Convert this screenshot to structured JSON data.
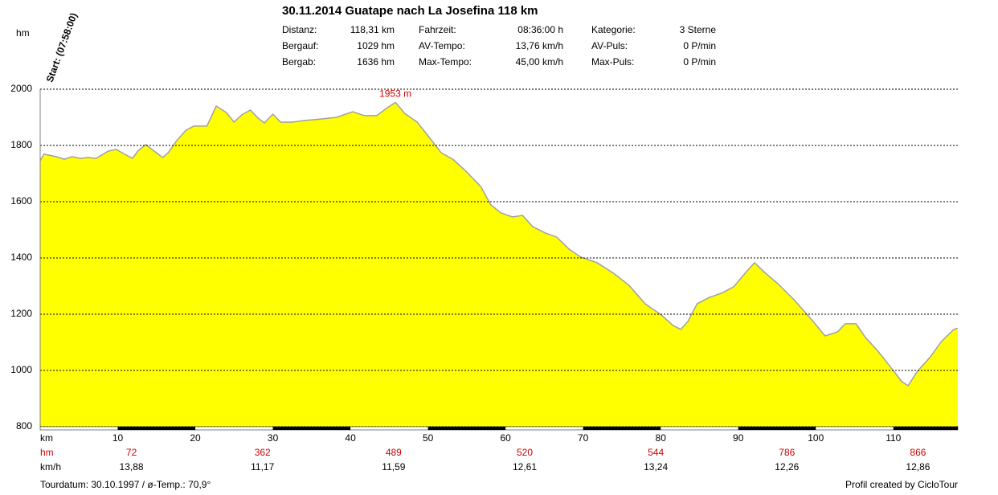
{
  "header": {
    "title": "30.11.2014 Guatape nach La Josefina 118 km",
    "stats": [
      [
        "Distanz:",
        "118,31 km",
        "Fahrzeit:",
        "08:36:00 h",
        "Kategorie:",
        "3 Sterne"
      ],
      [
        "Bergauf:",
        "1029 hm",
        "AV-Tempo:",
        "13,76 km/h",
        "AV-Puls:",
        "0 P/min"
      ],
      [
        "Bergab:",
        "1636 hm",
        "Max-Tempo:",
        "45,00 km/h",
        "Max-Puls:",
        "0 P/min"
      ]
    ],
    "start": "Start: (07:58:00)"
  },
  "chart_data": {
    "type": "area",
    "y_label": "hm",
    "x_label": "km",
    "x": [
      0,
      0.5,
      2.1,
      3.1,
      4.1,
      5.2,
      6.2,
      7.2,
      8.8,
      9.8,
      10.9,
      11.9,
      12.6,
      13.6,
      14.7,
      15.8,
      16.5,
      17.6,
      18.8,
      19.8,
      21.5,
      22.7,
      24.0,
      25.0,
      26.0,
      27.1,
      28.1,
      28.9,
      30.0,
      31.0,
      32.5,
      34.1,
      36.2,
      38.2,
      40.3,
      41.8,
      43.4,
      44.6,
      45.8,
      47.0,
      48.6,
      50.1,
      51.7,
      53.2,
      54.8,
      56.8,
      58.1,
      59.4,
      60.9,
      62.2,
      63.5,
      65.1,
      66.6,
      68.2,
      69.7,
      71.8,
      73.9,
      75.9,
      78.0,
      80.1,
      81.6,
      82.6,
      83.5,
      84.7,
      86.3,
      87.8,
      89.4,
      90.9,
      92.1,
      93.5,
      95.0,
      97.1,
      99.2,
      101.2,
      102.8,
      103.8,
      105.2,
      106.4,
      108.0,
      109.5,
      111.1,
      111.9,
      113.1,
      114.7,
      116.2,
      117.8,
      118.3
    ],
    "series": [
      {
        "color": "#ffff00",
        "stroke": "#a0a0a0",
        "values": [
          1746,
          1769,
          1760,
          1751,
          1760,
          1754,
          1757,
          1754,
          1780,
          1786,
          1769,
          1754,
          1780,
          1803,
          1780,
          1757,
          1774,
          1817,
          1854,
          1869,
          1869,
          1940,
          1917,
          1883,
          1909,
          1926,
          1897,
          1880,
          1911,
          1883,
          1883,
          1889,
          1894,
          1900,
          1920,
          1906,
          1906,
          1931,
          1953,
          1914,
          1883,
          1831,
          1774,
          1751,
          1711,
          1654,
          1589,
          1560,
          1546,
          1551,
          1511,
          1489,
          1474,
          1431,
          1403,
          1383,
          1346,
          1303,
          1237,
          1197,
          1160,
          1146,
          1174,
          1237,
          1260,
          1274,
          1297,
          1346,
          1383,
          1346,
          1311,
          1254,
          1189,
          1123,
          1137,
          1166,
          1166,
          1117,
          1069,
          1017,
          960,
          946,
          997,
          1046,
          1103,
          1146,
          1150
        ]
      }
    ],
    "xlim": [
      0,
      118.31
    ],
    "xticks": [
      10,
      20,
      30,
      40,
      50,
      60,
      70,
      80,
      90,
      100,
      110
    ],
    "ylim": [
      800,
      2000
    ],
    "yticks": [
      800,
      1000,
      1200,
      1400,
      1600,
      1800,
      2000
    ],
    "grid": true,
    "annotations": [
      {
        "x": 45.8,
        "y": 1953,
        "text": "1953 m"
      }
    ],
    "segment_row_labels": [
      "hm",
      "km/h"
    ],
    "segment_hm": [
      72,
      362,
      489,
      520,
      544,
      786,
      866
    ],
    "segment_kmh": {
      "values": [
        13.88,
        11.17,
        11.59,
        12.61,
        13.24,
        12.26,
        12.86
      ],
      "value_labels": [
        "13,88",
        "11,17",
        "11,59",
        "12,61",
        "13,24",
        "12,26",
        "12,86"
      ]
    }
  },
  "footer": {
    "left": "Tourdatum: 30.10.1997  /  ø-Temp.: 70,9°",
    "right": "Profil created by CicloTour"
  }
}
